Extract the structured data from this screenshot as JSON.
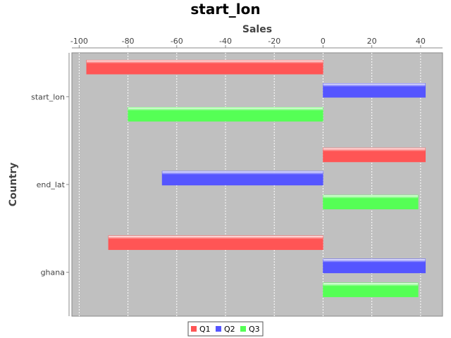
{
  "chart_data": {
    "type": "bar",
    "orientation": "horizontal",
    "title": "start_lon",
    "xlabel": "Sales",
    "ylabel": "Country",
    "categories": [
      "start_lon",
      "end_lat",
      "ghana"
    ],
    "series": [
      {
        "name": "Q1",
        "color": "#ff5555",
        "values": [
          -97,
          42,
          -88
        ]
      },
      {
        "name": "Q2",
        "color": "#5555ff",
        "values": [
          42,
          -66,
          42
        ]
      },
      {
        "name": "Q3",
        "color": "#55ff55",
        "values": [
          -80,
          39,
          39
        ]
      }
    ],
    "xlim": [
      -103,
      49
    ],
    "xticks": [
      -100,
      -80,
      -60,
      -40,
      -20,
      0,
      20,
      40
    ],
    "grid": true,
    "legend_position": "bottom",
    "plot_background": "#c0c0c0"
  }
}
